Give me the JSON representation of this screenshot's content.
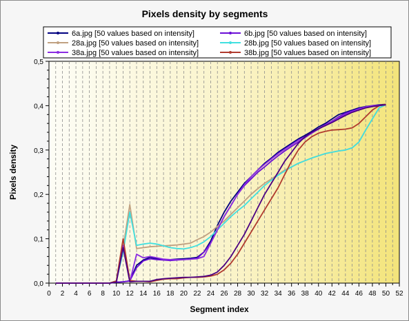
{
  "chart_data": {
    "type": "line",
    "title": "Pixels density by segments",
    "xlabel": "Segment index",
    "ylabel": "Pixels density",
    "xlim": [
      0,
      52
    ],
    "ylim": [
      0,
      0.5
    ],
    "x_ticks": [
      "0",
      "2",
      "4",
      "6",
      "8",
      "10",
      "12",
      "14",
      "16",
      "18",
      "20",
      "22",
      "24",
      "26",
      "28",
      "30",
      "32",
      "34",
      "36",
      "38",
      "40",
      "42",
      "44",
      "46",
      "48",
      "50",
      "52"
    ],
    "y_ticks": [
      "0,0",
      "0,1",
      "0,2",
      "0,3",
      "0,4",
      "0,5"
    ],
    "grid": true,
    "legend_position": "top",
    "background_gradient": [
      "#fdfdf6",
      "#f3e47a"
    ],
    "series": [
      {
        "name": "6a.jpg [50 values based on intensity]",
        "color": "#000080",
        "x": [
          1,
          2,
          3,
          4,
          5,
          6,
          7,
          8,
          9,
          10,
          11,
          12,
          13,
          14,
          15,
          16,
          17,
          18,
          19,
          20,
          21,
          22,
          23,
          24,
          25,
          26,
          27,
          28,
          29,
          30,
          31,
          32,
          33,
          34,
          35,
          36,
          37,
          38,
          39,
          40,
          41,
          42,
          43,
          44,
          45,
          46,
          47,
          48,
          49,
          50
        ],
        "values": [
          0,
          0,
          0,
          0,
          0,
          0,
          0,
          0,
          0,
          0.002,
          0.003,
          0.005,
          0.04,
          0.052,
          0.058,
          0.055,
          0.053,
          0.053,
          0.054,
          0.055,
          0.056,
          0.058,
          0.07,
          0.095,
          0.13,
          0.16,
          0.185,
          0.205,
          0.225,
          0.24,
          0.255,
          0.27,
          0.282,
          0.295,
          0.305,
          0.315,
          0.325,
          0.333,
          0.342,
          0.352,
          0.36,
          0.37,
          0.38,
          0.385,
          0.39,
          0.395,
          0.398,
          0.4,
          0.402,
          0.403
        ]
      },
      {
        "name": "6b.jpg [50 values based on intensity]",
        "color": "#6a0dd6",
        "x": [
          1,
          2,
          3,
          4,
          5,
          6,
          7,
          8,
          9,
          10,
          11,
          12,
          13,
          14,
          15,
          16,
          17,
          18,
          19,
          20,
          21,
          22,
          23,
          24,
          25,
          26,
          27,
          28,
          29,
          30,
          31,
          32,
          33,
          34,
          35,
          36,
          37,
          38,
          39,
          40,
          41,
          42,
          43,
          44,
          45,
          46,
          47,
          48,
          49,
          50
        ],
        "values": [
          0,
          0,
          0,
          0,
          0,
          0,
          0,
          0,
          0,
          0.002,
          0.003,
          0.005,
          0.035,
          0.05,
          0.055,
          0.053,
          0.052,
          0.051,
          0.052,
          0.053,
          0.054,
          0.056,
          0.07,
          0.09,
          0.12,
          0.15,
          0.175,
          0.2,
          0.22,
          0.235,
          0.25,
          0.262,
          0.275,
          0.287,
          0.298,
          0.308,
          0.318,
          0.328,
          0.338,
          0.348,
          0.357,
          0.365,
          0.375,
          0.383,
          0.388,
          0.393,
          0.397,
          0.4,
          0.401,
          0.402
        ]
      },
      {
        "name": "28a.jpg [50 values based on intensity]",
        "color": "#c0a080",
        "x": [
          1,
          2,
          3,
          4,
          5,
          6,
          7,
          8,
          9,
          10,
          11,
          12,
          13,
          14,
          15,
          16,
          17,
          18,
          19,
          20,
          21,
          22,
          23,
          24,
          25,
          26,
          27,
          28,
          29,
          30,
          31,
          32,
          33,
          34,
          35,
          36,
          37,
          38,
          39,
          40,
          41,
          42,
          43,
          44,
          45,
          46,
          47,
          48,
          49,
          50
        ],
        "values": [
          0,
          0,
          0,
          0,
          0,
          0,
          0,
          0,
          0,
          0.005,
          0.08,
          0.177,
          0.078,
          0.08,
          0.082,
          0.083,
          0.084,
          0.085,
          0.086,
          0.088,
          0.09,
          0.098,
          0.105,
          0.115,
          0.128,
          0.14,
          0.155,
          0.17,
          0.185,
          0.2,
          0.213,
          0.225,
          0.235,
          0.245,
          0.255,
          0.262,
          0.27,
          0.276,
          0.282,
          0.287,
          0.292,
          0.295,
          0.298,
          0.3,
          0.305,
          0.318,
          0.345,
          0.37,
          0.395,
          0.402
        ]
      },
      {
        "name": "28b.jpg [50 values based on intensity]",
        "color": "#40e0e0",
        "x": [
          1,
          2,
          3,
          4,
          5,
          6,
          7,
          8,
          9,
          10,
          11,
          12,
          13,
          14,
          15,
          16,
          17,
          18,
          19,
          20,
          21,
          22,
          23,
          24,
          25,
          26,
          27,
          28,
          29,
          30,
          31,
          32,
          33,
          34,
          35,
          36,
          37,
          38,
          39,
          40,
          41,
          42,
          43,
          44,
          45,
          46,
          47,
          48,
          49,
          50
        ],
        "values": [
          0,
          0,
          0,
          0,
          0,
          0,
          0,
          0,
          0,
          0.005,
          0.07,
          0.16,
          0.085,
          0.088,
          0.09,
          0.088,
          0.084,
          0.08,
          0.078,
          0.077,
          0.08,
          0.085,
          0.093,
          0.105,
          0.12,
          0.135,
          0.15,
          0.163,
          0.175,
          0.19,
          0.205,
          0.22,
          0.232,
          0.243,
          0.253,
          0.262,
          0.27,
          0.276,
          0.282,
          0.287,
          0.292,
          0.295,
          0.298,
          0.3,
          0.305,
          0.318,
          0.345,
          0.37,
          0.395,
          0.402
        ]
      },
      {
        "name": "38a.jpg [50 values based on intensity]",
        "color": "#8a2be2",
        "x": [
          1,
          2,
          3,
          4,
          5,
          6,
          7,
          8,
          9,
          10,
          11,
          12,
          13,
          14,
          15,
          16,
          17,
          18,
          19,
          20,
          21,
          22,
          23,
          24,
          25,
          26,
          27,
          28,
          29,
          30,
          31,
          32,
          33,
          34,
          35,
          36,
          37,
          38,
          39,
          40,
          41,
          42,
          43,
          44,
          45,
          46,
          47,
          48,
          49,
          50
        ],
        "values": [
          0,
          0,
          0,
          0,
          0,
          0,
          0,
          0,
          0,
          0.003,
          0.085,
          0.003,
          0.065,
          0.057,
          0.06,
          0.057,
          0.054,
          0.053,
          0.053,
          0.053,
          0.054,
          0.055,
          0.06,
          0.09,
          0.12,
          0.15,
          0.175,
          0.2,
          0.222,
          0.24,
          0.255,
          0.268,
          0.28,
          0.292,
          0.302,
          0.312,
          0.322,
          0.33,
          0.338,
          0.347,
          0.356,
          0.365,
          0.373,
          0.38,
          0.387,
          0.393,
          0.397,
          0.4,
          0.401,
          0.402
        ]
      },
      {
        "name": "38b.jpg [50 values based on intensity]",
        "color": "#b03a2e",
        "x": [
          1,
          2,
          3,
          4,
          5,
          6,
          7,
          8,
          9,
          10,
          11,
          12,
          13,
          14,
          15,
          16,
          17,
          18,
          19,
          20,
          21,
          22,
          23,
          24,
          25,
          26,
          27,
          28,
          29,
          30,
          31,
          32,
          33,
          34,
          35,
          36,
          37,
          38,
          39,
          40,
          41,
          42,
          43,
          44,
          45,
          46,
          47,
          48,
          49,
          50
        ],
        "values": [
          0,
          0,
          0,
          0,
          0,
          0,
          0,
          0,
          0,
          0.005,
          0.1,
          0.006,
          0.004,
          0.004,
          0.003,
          0.006,
          0.009,
          0.01,
          0.01,
          0.012,
          0.013,
          0.013,
          0.014,
          0.016,
          0.02,
          0.03,
          0.045,
          0.065,
          0.09,
          0.115,
          0.14,
          0.165,
          0.19,
          0.215,
          0.245,
          0.275,
          0.3,
          0.318,
          0.33,
          0.338,
          0.342,
          0.345,
          0.346,
          0.347,
          0.35,
          0.36,
          0.375,
          0.39,
          0.4,
          0.403
        ]
      },
      {
        "name": "",
        "color": "#4b0082",
        "x": [
          1,
          2,
          3,
          4,
          5,
          6,
          7,
          8,
          9,
          10,
          11,
          12,
          13,
          14,
          15,
          16,
          17,
          18,
          19,
          20,
          21,
          22,
          23,
          24,
          25,
          26,
          27,
          28,
          29,
          30,
          31,
          32,
          33,
          34,
          35,
          36,
          37,
          38,
          39,
          40,
          41,
          42,
          43,
          44,
          45,
          46,
          47,
          48,
          49,
          50
        ],
        "values": [
          0,
          0,
          0,
          0,
          0,
          0,
          0,
          0,
          0,
          0.002,
          0.08,
          0.003,
          0.004,
          0.004,
          0.004,
          0.008,
          0.01,
          0.011,
          0.012,
          0.013,
          0.013,
          0.014,
          0.015,
          0.018,
          0.025,
          0.04,
          0.06,
          0.085,
          0.11,
          0.14,
          0.17,
          0.2,
          0.225,
          0.25,
          0.275,
          0.295,
          0.315,
          0.33,
          0.34,
          0.348,
          0.355,
          0.362,
          0.37,
          0.378,
          0.385,
          0.39,
          0.395,
          0.398,
          0.4,
          0.402
        ]
      }
    ]
  }
}
